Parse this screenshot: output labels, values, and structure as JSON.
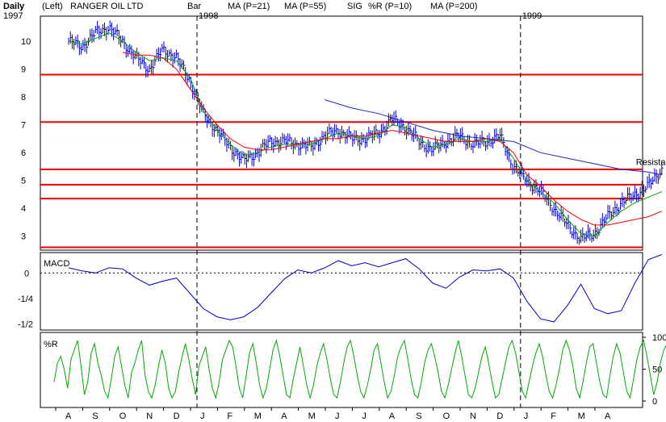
{
  "header": {
    "period": "Daily",
    "scale_side": "(Left)",
    "ticker": "RANGER OIL LTD",
    "year_start": "1997",
    "legend": [
      {
        "text": "Bar",
        "color": "#0000cc"
      },
      {
        "text": "MA (P=21)",
        "color": "#00aa00"
      },
      {
        "text": "MA (P=55)",
        "color": "#ee0000"
      },
      {
        "text": "SIG",
        "color": "#0000cc"
      },
      {
        "text": "%R (P=10)",
        "color": "#00aa00"
      },
      {
        "text": "MA (P=200)",
        "color": "#0000cc"
      }
    ]
  },
  "colors": {
    "price_bars": "#0000cc",
    "ma21": "#00aa00",
    "ma55": "#ee0000",
    "ma200": "#2222bb",
    "levels": "#ee0000",
    "macd": "#0000cc",
    "pct_r": "#00aa00"
  },
  "chart_data": [
    {
      "type": "bar",
      "panel": "price",
      "year_labels": [
        {
          "text": "1998",
          "month_index": 5
        },
        {
          "text": "1999",
          "month_index": 17
        }
      ],
      "months": [
        "A",
        "S",
        "O",
        "N",
        "D",
        "J",
        "F",
        "M",
        "A",
        "M",
        "J",
        "J",
        "A",
        "S",
        "O",
        "N",
        "D",
        "J",
        "F",
        "M",
        "A"
      ],
      "y_ticks": [
        3,
        4,
        5,
        6,
        7,
        8,
        9,
        10
      ],
      "ylim": [
        2.5,
        10.9
      ],
      "series": [
        {
          "name": "Bar",
          "points": [
            [
              0,
              10
            ],
            [
              0.5,
              9.8
            ],
            [
              1,
              10.3
            ],
            [
              1.5,
              10.5
            ],
            [
              2,
              10
            ],
            [
              2.5,
              9.4
            ],
            [
              3,
              9
            ],
            [
              3.5,
              9.7
            ],
            [
              4,
              9.4
            ],
            [
              4.5,
              8.6
            ],
            [
              5,
              7.4
            ],
            [
              5.5,
              6.8
            ],
            [
              6,
              6.2
            ],
            [
              6.5,
              5.7
            ],
            [
              7,
              6
            ],
            [
              7.5,
              6.4
            ],
            [
              8,
              6.4
            ],
            [
              8.5,
              6.3
            ],
            [
              9,
              6.2
            ],
            [
              9.5,
              6.6
            ],
            [
              10,
              6.8
            ],
            [
              10.5,
              6.5
            ],
            [
              11,
              6.5
            ],
            [
              11.5,
              6.7
            ],
            [
              12,
              7.2
            ],
            [
              12.5,
              6.9
            ],
            [
              13,
              6.4
            ],
            [
              13.5,
              6.1
            ],
            [
              14,
              6.4
            ],
            [
              14.5,
              6.6
            ],
            [
              15,
              6.3
            ],
            [
              15.5,
              6.4
            ],
            [
              16,
              6.6
            ],
            [
              16.5,
              5.5
            ],
            [
              17,
              5
            ],
            [
              17.5,
              4.6
            ],
            [
              18,
              4
            ],
            [
              18.5,
              3.4
            ],
            [
              19,
              2.9
            ],
            [
              19.5,
              3.1
            ],
            [
              20,
              3.7
            ],
            [
              20.5,
              4.2
            ],
            [
              21,
              4.5
            ],
            [
              21.5,
              4.8
            ],
            [
              22,
              5.4
            ]
          ]
        },
        {
          "name": "MA (P=21)",
          "points": [
            [
              0,
              10
            ],
            [
              0.5,
              9.9
            ],
            [
              1,
              10.1
            ],
            [
              1.5,
              10.3
            ],
            [
              2,
              10
            ],
            [
              2.5,
              9.6
            ],
            [
              3,
              9.3
            ],
            [
              3.5,
              9.4
            ],
            [
              4,
              9.3
            ],
            [
              4.5,
              8.7
            ],
            [
              5,
              7.5
            ],
            [
              5.5,
              6.8
            ],
            [
              6,
              6.3
            ],
            [
              6.5,
              5.9
            ],
            [
              7,
              6
            ],
            [
              7.5,
              6.2
            ],
            [
              8,
              6.3
            ],
            [
              8.5,
              6.3
            ],
            [
              9,
              6.3
            ],
            [
              9.5,
              6.5
            ],
            [
              10,
              6.7
            ],
            [
              10.5,
              6.6
            ],
            [
              11,
              6.5
            ],
            [
              11.5,
              6.6
            ],
            [
              12,
              7
            ],
            [
              12.5,
              6.9
            ],
            [
              13,
              6.5
            ],
            [
              13.5,
              6.2
            ],
            [
              14,
              6.3
            ],
            [
              14.5,
              6.5
            ],
            [
              15,
              6.4
            ],
            [
              15.5,
              6.4
            ],
            [
              16,
              6.5
            ],
            [
              16.5,
              5.8
            ],
            [
              17,
              5
            ],
            [
              17.5,
              4.6
            ],
            [
              18,
              4.2
            ],
            [
              18.5,
              3.6
            ],
            [
              19,
              3.1
            ],
            [
              19.5,
              3
            ],
            [
              20,
              3.5
            ],
            [
              20.5,
              3.9
            ],
            [
              21,
              4.2
            ],
            [
              21.5,
              4.4
            ],
            [
              22,
              4.6
            ]
          ]
        },
        {
          "name": "MA (P=55)",
          "points": [
            [
              2,
              9.6
            ],
            [
              2.5,
              9.5
            ],
            [
              3,
              9.5
            ],
            [
              3.5,
              9.4
            ],
            [
              4,
              9
            ],
            [
              4.5,
              8.3
            ],
            [
              5,
              7.6
            ],
            [
              5.5,
              7
            ],
            [
              6,
              6.5
            ],
            [
              6.5,
              6.2
            ],
            [
              7,
              6.1
            ],
            [
              7.5,
              6.1
            ],
            [
              8,
              6.2
            ],
            [
              8.5,
              6.3
            ],
            [
              9,
              6.4
            ],
            [
              9.5,
              6.5
            ],
            [
              10,
              6.5
            ],
            [
              10.5,
              6.6
            ],
            [
              11,
              6.6
            ],
            [
              11.5,
              6.7
            ],
            [
              12,
              6.8
            ],
            [
              12.5,
              6.7
            ],
            [
              13,
              6.6
            ],
            [
              13.5,
              6.5
            ],
            [
              14,
              6.4
            ],
            [
              14.5,
              6.4
            ],
            [
              15,
              6.4
            ],
            [
              15.5,
              6.5
            ],
            [
              16,
              6.4
            ],
            [
              16.5,
              6
            ],
            [
              17,
              5.2
            ],
            [
              17.5,
              4.8
            ],
            [
              18,
              4.3
            ],
            [
              18.5,
              3.9
            ],
            [
              19,
              3.6
            ],
            [
              19.5,
              3.4
            ],
            [
              20,
              3.4
            ],
            [
              20.5,
              3.5
            ],
            [
              21,
              3.6
            ],
            [
              21.5,
              3.7
            ],
            [
              22,
              3.9
            ]
          ]
        },
        {
          "name": "MA (P=200)",
          "points": [
            [
              9.5,
              7.9
            ],
            [
              10.5,
              7.6
            ],
            [
              11.5,
              7.4
            ],
            [
              12.5,
              7.1
            ],
            [
              13.5,
              6.8
            ],
            [
              14.5,
              6.6
            ],
            [
              15.5,
              6.5
            ],
            [
              16.5,
              6.4
            ],
            [
              17.5,
              6
            ],
            [
              18.5,
              5.8
            ],
            [
              19.5,
              5.6
            ],
            [
              20.5,
              5.4
            ],
            [
              21.5,
              5.3
            ],
            [
              22,
              5.2
            ]
          ]
        }
      ],
      "horizontal_levels": [
        8.8,
        7.1,
        5.4,
        4.85,
        4.35,
        2.6
      ],
      "annotations": [
        {
          "text": "Resistance",
          "x": 22,
          "y": 5.5
        }
      ]
    },
    {
      "type": "line",
      "panel": "macd",
      "title": "MACD",
      "y_ticks": [
        {
          "value": 0,
          "label": "0"
        },
        {
          "value": -0.25,
          "label": "-1/4"
        },
        {
          "value": -0.5,
          "label": "-1/2"
        }
      ],
      "ylim": [
        -0.56,
        0.2
      ],
      "series": [
        {
          "name": "MACD",
          "points": [
            [
              0,
              0.05
            ],
            [
              0.5,
              0.02
            ],
            [
              1,
              0
            ],
            [
              1.5,
              0.05
            ],
            [
              2,
              0.04
            ],
            [
              2.5,
              -0.05
            ],
            [
              3,
              -0.12
            ],
            [
              3.5,
              -0.08
            ],
            [
              4,
              -0.05
            ],
            [
              4.5,
              -0.2
            ],
            [
              5,
              -0.35
            ],
            [
              5.5,
              -0.43
            ],
            [
              6,
              -0.46
            ],
            [
              6.5,
              -0.43
            ],
            [
              7,
              -0.34
            ],
            [
              7.5,
              -0.2
            ],
            [
              8,
              -0.06
            ],
            [
              8.5,
              0.03
            ],
            [
              9,
              0
            ],
            [
              9.5,
              0.05
            ],
            [
              10,
              0.12
            ],
            [
              10.5,
              0.07
            ],
            [
              11,
              0.1
            ],
            [
              11.5,
              0.06
            ],
            [
              12,
              0.1
            ],
            [
              12.5,
              0.14
            ],
            [
              13,
              0.04
            ],
            [
              13.5,
              -0.1
            ],
            [
              14,
              -0.15
            ],
            [
              14.5,
              -0.04
            ],
            [
              15,
              0.03
            ],
            [
              15.5,
              0.02
            ],
            [
              16,
              0.04
            ],
            [
              16.5,
              -0.05
            ],
            [
              17,
              -0.28
            ],
            [
              17.5,
              -0.45
            ],
            [
              18,
              -0.48
            ],
            [
              18.5,
              -0.32
            ],
            [
              19,
              -0.11
            ],
            [
              19.5,
              -0.35
            ],
            [
              20,
              -0.4
            ],
            [
              20.5,
              -0.37
            ],
            [
              21,
              -0.1
            ],
            [
              21.5,
              0.13
            ],
            [
              22,
              0.18
            ]
          ]
        }
      ]
    },
    {
      "type": "line",
      "panel": "pct_r",
      "title": "%R",
      "y_ticks": [
        0,
        50,
        100
      ],
      "ylim": [
        0,
        100
      ],
      "series": [
        {
          "name": "%R (P=10)",
          "values": [
            30,
            60,
            70,
            50,
            20,
            65,
            80,
            95,
            55,
            10,
            30,
            75,
            90,
            60,
            40,
            15,
            5,
            35,
            70,
            85,
            55,
            25,
            5,
            45,
            60,
            80,
            95,
            40,
            15,
            5,
            25,
            55,
            80,
            60,
            20,
            5,
            15,
            45,
            70,
            90,
            65,
            35,
            10,
            55,
            70,
            85,
            50,
            20,
            5,
            30,
            65,
            80,
            95,
            85,
            55,
            20,
            5,
            40,
            75,
            90,
            60,
            25,
            5,
            20,
            50,
            80,
            95,
            70,
            40,
            10,
            5,
            35,
            60,
            85,
            55,
            25,
            5,
            25,
            55,
            75,
            90,
            65,
            35,
            10,
            5,
            30,
            60,
            85,
            95,
            70,
            40,
            15,
            5,
            25,
            50,
            80,
            90,
            60,
            30,
            5,
            15,
            40,
            70,
            85,
            95,
            65,
            35,
            10,
            5,
            30,
            60,
            80,
            90,
            70,
            45,
            15,
            5,
            25,
            50,
            75,
            95,
            70,
            40,
            10,
            5,
            20,
            45,
            70,
            85,
            60,
            30,
            5,
            10,
            35,
            60,
            85,
            95,
            75,
            45,
            15,
            5,
            30,
            55,
            75,
            90,
            70,
            40,
            15,
            5,
            25,
            50,
            80,
            95,
            80,
            55,
            20,
            5,
            30,
            60,
            85,
            90,
            60,
            30,
            10,
            5,
            40,
            70,
            90,
            75,
            45,
            15,
            5,
            35,
            65,
            85,
            95,
            70,
            40,
            10,
            30,
            60,
            80,
            90
          ]
        }
      ]
    }
  ]
}
